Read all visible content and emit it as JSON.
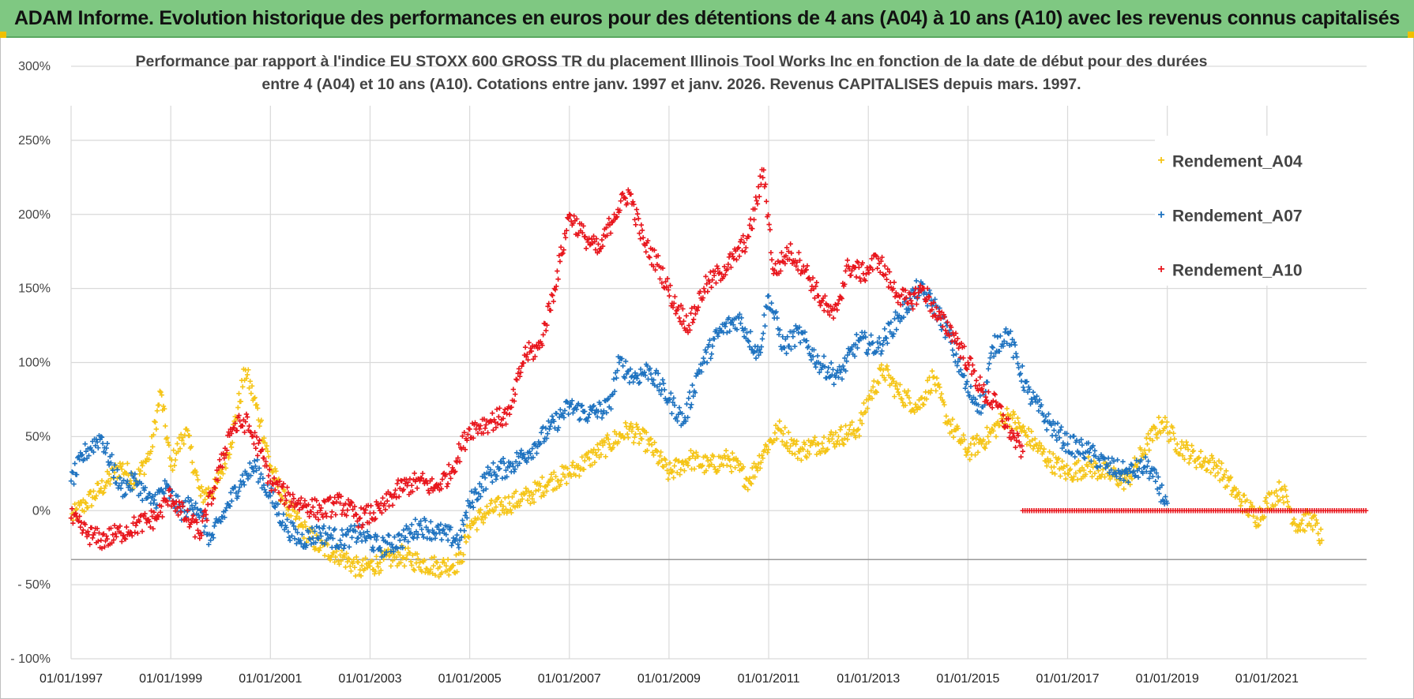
{
  "banner": {
    "text": "ADAM Informe. Evolution historique des performances en euros pour des détentions de 4 ans (A04) à 10 ans (A10) avec les revenus connus capitalisés"
  },
  "chart_data": {
    "type": "scatter",
    "title_line1": "Performance par rapport à l'indice EU STOXX 600 GROSS TR  du placement Illinois Tool Works Inc en fonction de la date de début pour des durées",
    "title_line2": "entre 4 (A04) et 10 ans (A10). Cotations entre janv. 1997 et janv. 2026. Revenus CAPITALISES depuis mars. 1997.",
    "ylim": [
      -100,
      300
    ],
    "yticks": [
      -100,
      -50,
      0,
      50,
      100,
      150,
      200,
      250,
      300
    ],
    "ytick_labels": [
      "- 100%",
      "- 50%",
      "0%",
      "50%",
      "100%",
      "150%",
      "200%",
      "250%",
      "300%"
    ],
    "xlim": [
      1997.0,
      2023.0
    ],
    "xticks": [
      1997,
      1999,
      2001,
      2003,
      2005,
      2007,
      2009,
      2011,
      2013,
      2015,
      2017,
      2019,
      2021
    ],
    "xtick_labels": [
      "01/01/1997",
      "01/01/1999",
      "01/01/2001",
      "01/01/2003",
      "01/01/2005",
      "01/01/2007",
      "01/01/2009",
      "01/01/2011",
      "01/01/2013",
      "01/01/2015",
      "01/01/2017",
      "01/01/2019",
      "01/01/2021"
    ],
    "grid": true,
    "legend_position": "top-right",
    "series": [
      {
        "name": "Rendement_A04",
        "color": "#f5c518",
        "x": [
          1997.0,
          1997.3,
          1997.6,
          1998.0,
          1998.3,
          1998.6,
          1998.8,
          1999.0,
          1999.3,
          1999.6,
          1999.9,
          2000.2,
          2000.5,
          2000.8,
          2001.0,
          2001.3,
          2001.6,
          2002.0,
          2002.4,
          2002.8,
          2003.2,
          2003.6,
          2004.0,
          2004.4,
          2004.8,
          2005.0,
          2005.4,
          2005.8,
          2006.2,
          2006.6,
          2007.0,
          2007.4,
          2007.8,
          2008.2,
          2008.6,
          2009.0,
          2009.4,
          2009.8,
          2010.2,
          2010.6,
          2010.9,
          2011.2,
          2011.6,
          2012.0,
          2012.4,
          2012.8,
          2013.0,
          2013.3,
          2013.6,
          2014.0,
          2014.3,
          2014.6,
          2015.0,
          2015.4,
          2015.8,
          2016.2,
          2016.6,
          2017.0,
          2017.4,
          2017.8,
          2018.2,
          2018.6,
          2018.9,
          2019.2,
          2019.6,
          2020.0,
          2020.4,
          2020.8,
          2021.0,
          2021.3,
          2021.6,
          2021.9,
          2022.1
        ],
        "y": [
          -5,
          5,
          15,
          30,
          20,
          40,
          80,
          30,
          55,
          10,
          15,
          45,
          95,
          60,
          30,
          5,
          -10,
          -25,
          -30,
          -40,
          -35,
          -30,
          -35,
          -38,
          -35,
          -10,
          0,
          5,
          10,
          20,
          25,
          35,
          45,
          55,
          45,
          25,
          35,
          30,
          35,
          20,
          40,
          55,
          40,
          45,
          50,
          55,
          75,
          95,
          80,
          70,
          90,
          60,
          40,
          50,
          65,
          50,
          35,
          25,
          30,
          25,
          20,
          45,
          60,
          45,
          35,
          30,
          10,
          -5,
          5,
          15,
          -10,
          -5,
          -20
        ]
      },
      {
        "name": "Rendement_A07",
        "color": "#1f73c0",
        "x": [
          1997.0,
          1997.3,
          1997.6,
          1998.0,
          1998.3,
          1998.6,
          1998.9,
          1999.2,
          1999.5,
          1999.8,
          2000.1,
          2000.4,
          2000.7,
          2001.0,
          2001.3,
          2001.6,
          2002.0,
          2002.4,
          2002.8,
          2003.2,
          2003.6,
          2004.0,
          2004.4,
          2004.8,
          2005.0,
          2005.4,
          2005.8,
          2006.2,
          2006.6,
          2007.0,
          2007.4,
          2007.8,
          2008.0,
          2008.3,
          2008.6,
          2009.0,
          2009.3,
          2009.6,
          2010.0,
          2010.4,
          2010.8,
          2011.0,
          2011.3,
          2011.6,
          2012.0,
          2012.4,
          2012.8,
          2013.2,
          2013.6,
          2014.0,
          2014.3,
          2014.6,
          2015.0,
          2015.3,
          2015.5,
          2015.8,
          2016.2,
          2016.6,
          2017.0,
          2017.4,
          2017.8,
          2018.2,
          2018.6,
          2019.0
        ],
        "y": [
          20,
          40,
          50,
          15,
          20,
          5,
          15,
          0,
          5,
          -20,
          0,
          20,
          30,
          10,
          -10,
          -20,
          -15,
          -20,
          -15,
          -25,
          -20,
          -10,
          -15,
          -20,
          5,
          25,
          30,
          40,
          55,
          70,
          65,
          70,
          100,
          90,
          95,
          75,
          60,
          95,
          120,
          130,
          105,
          145,
          110,
          120,
          100,
          90,
          115,
          110,
          130,
          150,
          140,
          120,
          80,
          70,
          110,
          120,
          80,
          60,
          45,
          40,
          30,
          25,
          30,
          5
        ]
      },
      {
        "name": "Rendement_A10",
        "color": "#e8161d",
        "x": [
          1997.0,
          1997.3,
          1997.6,
          1998.0,
          1998.3,
          1998.7,
          1999.0,
          1999.3,
          1999.6,
          2000.0,
          2000.2,
          2000.5,
          2000.8,
          2001.0,
          2001.3,
          2001.6,
          2002.0,
          2002.4,
          2002.8,
          2003.2,
          2003.6,
          2004.0,
          2004.3,
          2004.6,
          2005.0,
          2005.4,
          2005.8,
          2006.1,
          2006.4,
          2006.7,
          2007.0,
          2007.3,
          2007.6,
          2007.9,
          2008.2,
          2008.5,
          2008.8,
          2009.1,
          2009.4,
          2009.7,
          2010.0,
          2010.3,
          2010.6,
          2010.9,
          2011.1,
          2011.4,
          2011.7,
          2012.0,
          2012.3,
          2012.6,
          2012.9,
          2013.2,
          2013.5,
          2013.8,
          2014.1,
          2014.4,
          2014.7,
          2015.0,
          2015.3,
          2015.6,
          2015.9,
          2016.1
        ],
        "y": [
          -5,
          -15,
          -20,
          -15,
          -10,
          -5,
          10,
          -5,
          -15,
          30,
          55,
          60,
          40,
          20,
          10,
          5,
          0,
          5,
          -5,
          0,
          15,
          20,
          15,
          25,
          55,
          60,
          65,
          105,
          110,
          150,
          200,
          185,
          175,
          200,
          215,
          180,
          165,
          140,
          125,
          150,
          160,
          170,
          185,
          230,
          160,
          175,
          165,
          145,
          130,
          165,
          160,
          170,
          150,
          140,
          150,
          130,
          120,
          100,
          80,
          70,
          50,
          40
        ]
      }
    ],
    "flat_series_segments": [
      {
        "name": "Rendement_A10",
        "x_start": 2016.1,
        "x_end": 2023.0,
        "y": 0
      }
    ]
  }
}
